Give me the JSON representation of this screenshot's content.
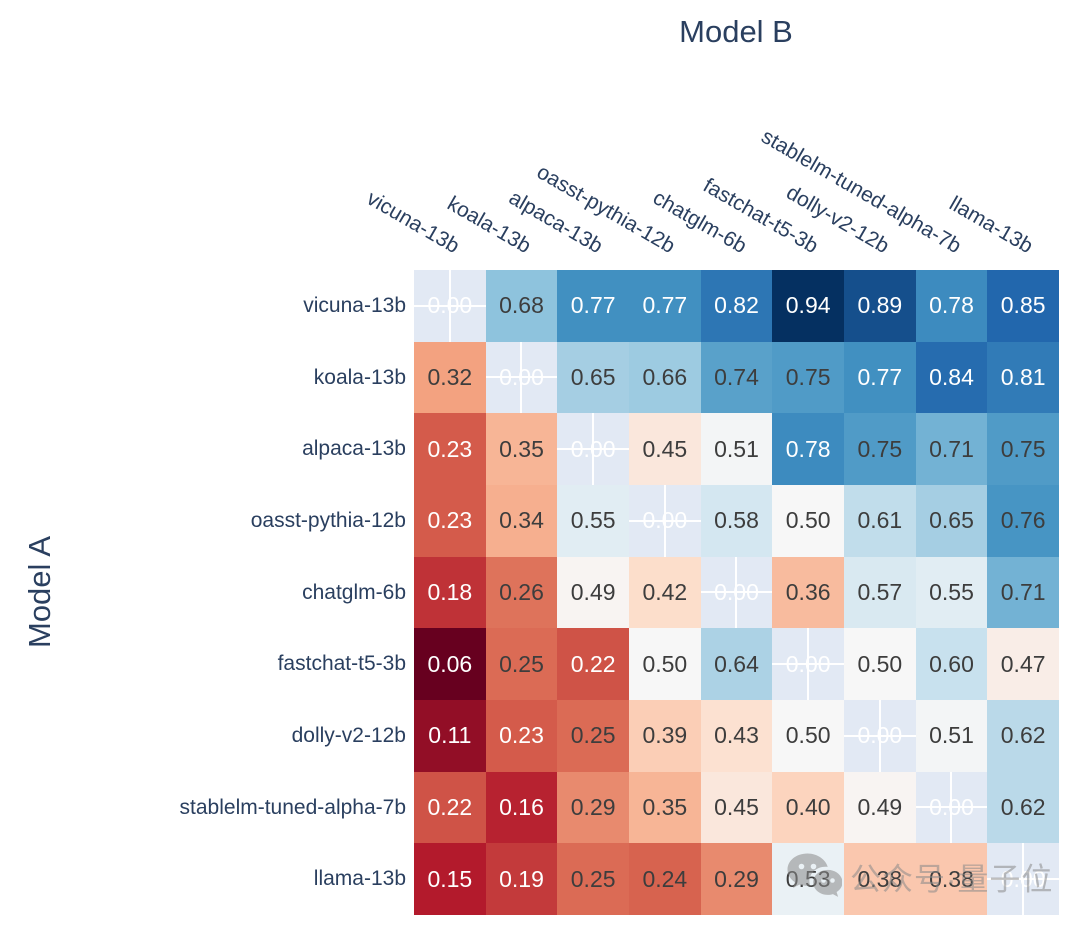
{
  "figure": {
    "x_axis_title": "Model B",
    "y_axis_title": "Model A"
  },
  "chart_data": {
    "type": "heatmap",
    "title": "",
    "xlabel": "Model B",
    "ylabel": "Model A",
    "x_labels": [
      "vicuna-13b",
      "koala-13b",
      "alpaca-13b",
      "oasst-pythia-12b",
      "chatglm-6b",
      "fastchat-t5-3b",
      "dolly-v2-12b",
      "stablelm-tuned-alpha-7b",
      "llama-13b"
    ],
    "y_labels": [
      "vicuna-13b",
      "koala-13b",
      "alpaca-13b",
      "oasst-pythia-12b",
      "chatglm-6b",
      "fastchat-t5-3b",
      "dolly-v2-12b",
      "stablelm-tuned-alpha-7b",
      "llama-13b"
    ],
    "values": [
      [
        0.0,
        0.68,
        0.77,
        0.77,
        0.82,
        0.94,
        0.89,
        0.78,
        0.85
      ],
      [
        0.32,
        0.0,
        0.65,
        0.66,
        0.74,
        0.75,
        0.77,
        0.84,
        0.81
      ],
      [
        0.23,
        0.35,
        0.0,
        0.45,
        0.51,
        0.78,
        0.75,
        0.71,
        0.75
      ],
      [
        0.23,
        0.34,
        0.55,
        0.0,
        0.58,
        0.5,
        0.61,
        0.65,
        0.76
      ],
      [
        0.18,
        0.26,
        0.49,
        0.42,
        0.0,
        0.36,
        0.57,
        0.55,
        0.71
      ],
      [
        0.06,
        0.25,
        0.22,
        0.5,
        0.64,
        0.0,
        0.5,
        0.6,
        0.47
      ],
      [
        0.11,
        0.23,
        0.25,
        0.39,
        0.43,
        0.5,
        0.0,
        0.51,
        0.62
      ],
      [
        0.22,
        0.16,
        0.29,
        0.35,
        0.45,
        0.4,
        0.49,
        0.0,
        0.62
      ],
      [
        0.15,
        0.19,
        0.25,
        0.24,
        0.29,
        0.53,
        0.38,
        0.38,
        0.0
      ]
    ],
    "value_decimals": 2,
    "zmin": 0.06,
    "zmax": 0.94,
    "colorscale_name": "RdBu (red = low, blue = high)",
    "diagonal_note": "diagonal self-match cells show 0.00 on plot background with white gridline crosshair",
    "grid": "off",
    "legend_position": "none"
  },
  "colors": {
    "colorscale_stops": [
      "#67001f",
      "#b2182b",
      "#d6604d",
      "#f4a582",
      "#fddbc7",
      "#f7f7f7",
      "#d1e5f0",
      "#92c5de",
      "#4393c3",
      "#2166ac",
      "#053061"
    ],
    "plot_background": "#e2e9f4",
    "gridline": "#ffffff",
    "axis_font": "#2a3f5f",
    "cell_text_dark": "#3d3d3d",
    "cell_text_light": "#ffffff",
    "watermark_gray": "#8a8a8a"
  },
  "watermark": {
    "icon": "wechat-icon",
    "text": "公众号·量子位"
  }
}
